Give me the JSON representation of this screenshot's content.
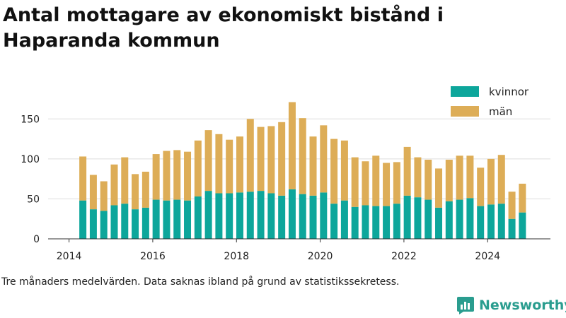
{
  "title": "Antal mottagare av ekonomiskt bistånd i Haparanda kommun",
  "footnote": "Tre månaders medelvärden. Data saknas ibland på grund av statistikssekretess.",
  "brand": "Newsworthy",
  "colors": {
    "kvinnor": "#0da69b",
    "man": "#ddad57",
    "grid": "#dddddd",
    "brand": "#2a9d8f"
  },
  "chart_data": {
    "type": "bar",
    "stacked": true,
    "x_ticks": [
      "2014",
      "2016",
      "2018",
      "2020",
      "2022",
      "2024"
    ],
    "y_ticks": [
      "0",
      "50",
      "100",
      "150"
    ],
    "ylim": [
      0,
      175
    ],
    "xlim": [
      2013.5,
      2025.5
    ],
    "x": [
      2014.33,
      2014.58,
      2014.83,
      2015.08,
      2015.33,
      2015.58,
      2015.83,
      2016.08,
      2016.33,
      2016.58,
      2016.83,
      2017.08,
      2017.33,
      2017.58,
      2017.83,
      2018.08,
      2018.33,
      2018.58,
      2018.83,
      2019.08,
      2019.33,
      2019.58,
      2019.83,
      2020.08,
      2020.33,
      2020.58,
      2020.83,
      2021.08,
      2021.33,
      2021.58,
      2021.83,
      2022.08,
      2022.33,
      2022.58,
      2022.83,
      2023.08,
      2023.33,
      2023.58,
      2023.83,
      2024.08,
      2024.33,
      2024.58,
      2024.83
    ],
    "legend_position": "top-right",
    "grid": true,
    "series": [
      {
        "name": "kvinnor",
        "values": [
          48,
          37,
          35,
          42,
          44,
          37,
          39,
          49,
          48,
          49,
          48,
          53,
          60,
          57,
          57,
          58,
          59,
          60,
          57,
          54,
          62,
          56,
          54,
          58,
          44,
          48,
          40,
          42,
          41,
          41,
          44,
          54,
          52,
          49,
          39,
          47,
          49,
          51,
          41,
          43,
          44,
          25,
          33
        ]
      },
      {
        "name": "män",
        "values": [
          55,
          43,
          37,
          51,
          58,
          44,
          45,
          57,
          62,
          62,
          61,
          70,
          76,
          74,
          67,
          70,
          91,
          80,
          84,
          92,
          109,
          95,
          74,
          84,
          81,
          75,
          62,
          55,
          63,
          54,
          52,
          61,
          50,
          50,
          49,
          52,
          55,
          53,
          48,
          57,
          61,
          34,
          36
        ]
      }
    ]
  }
}
